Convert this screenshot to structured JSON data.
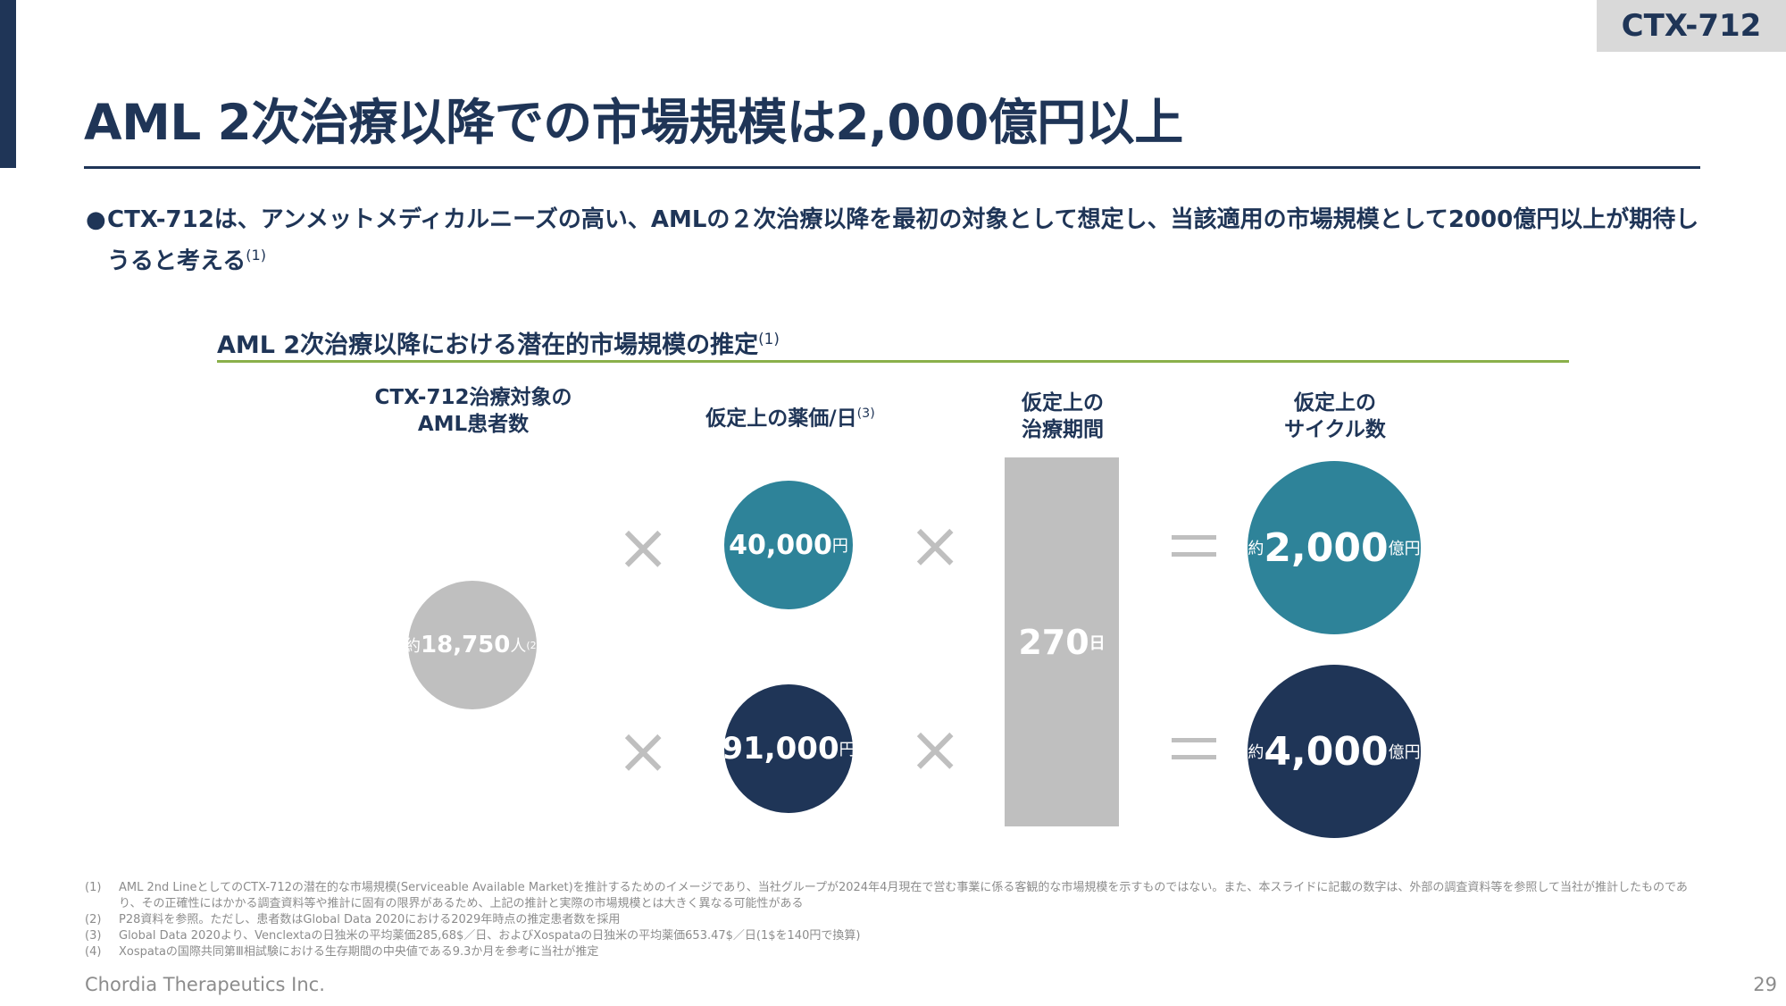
{
  "tag": "CTX-712",
  "title": "AML 2次治療以降での市場規模は2,000億円以上",
  "bullet": {
    "marker": "●",
    "text": "CTX-712は、アンメットメディカルニーズの高い、AMLの２次治療以降を最初の対象として想定し、当該適用の市場規模として2000億円以上が期待しうると考える",
    "sup": "(1)"
  },
  "section": {
    "title": "AML 2次治療以降における潜在的市場規模の推定",
    "sup": "(1)"
  },
  "columns": {
    "patients": {
      "line1": "CTX-712治療対象の",
      "line2": "AML患者数"
    },
    "price": {
      "label": "仮定上の薬価/日",
      "sup": "(3)"
    },
    "period": {
      "line1": "仮定上の",
      "line2": "治療期間"
    },
    "cycles": {
      "line1": "仮定上の",
      "line2": "サイクル数"
    }
  },
  "patients_circle": {
    "prefix": "約",
    "value": "18,750",
    "unit": "人",
    "sup": "(2)"
  },
  "price_high": {
    "value": "40,000",
    "unit": "円"
  },
  "price_low": {
    "value": "91,000",
    "unit": "円"
  },
  "operators": {
    "times": "×"
  },
  "period_bar": {
    "value": "270",
    "unit": "日"
  },
  "result_high": {
    "prefix": "約",
    "value": "2,000",
    "unit": "億円"
  },
  "result_low": {
    "prefix": "約",
    "value": "4,000",
    "unit": "億円"
  },
  "footnotes": [
    {
      "num": "(1)",
      "text": "AML 2nd LineとしてのCTX-712の潜在的な市場規模(Serviceable Available Market)を推計するためのイメージであり、当社グループが2024年4月現在で営む事業に係る客観的な市場規模を示すものではない。また、本スライドに記載の数字は、外部の調査資料等を参照して当社が推計したものであり、その正確性にはかかる調査資料等や推計に固有の限界があるため、上記の推計と実際の市場規模とは大きく異なる可能性がある"
    },
    {
      "num": "(2)",
      "text": "P28資料を参照。ただし、患者数はGlobal Data 2020における2029年時点の推定患者数を採用"
    },
    {
      "num": "(3)",
      "text": "Global Data 2020より、Venclextaの日独米の平均薬価285,68$／日、およびXospataの日独米の平均薬価653.47$／日(1$を140円で換算)"
    },
    {
      "num": "(4)",
      "text": "Xospataの国際共同第Ⅲ相試験における生存期間の中央値である9.3か月を参考に当社が推定"
    }
  ],
  "company": "Chordia Therapeutics Inc.",
  "page_number": "29"
}
